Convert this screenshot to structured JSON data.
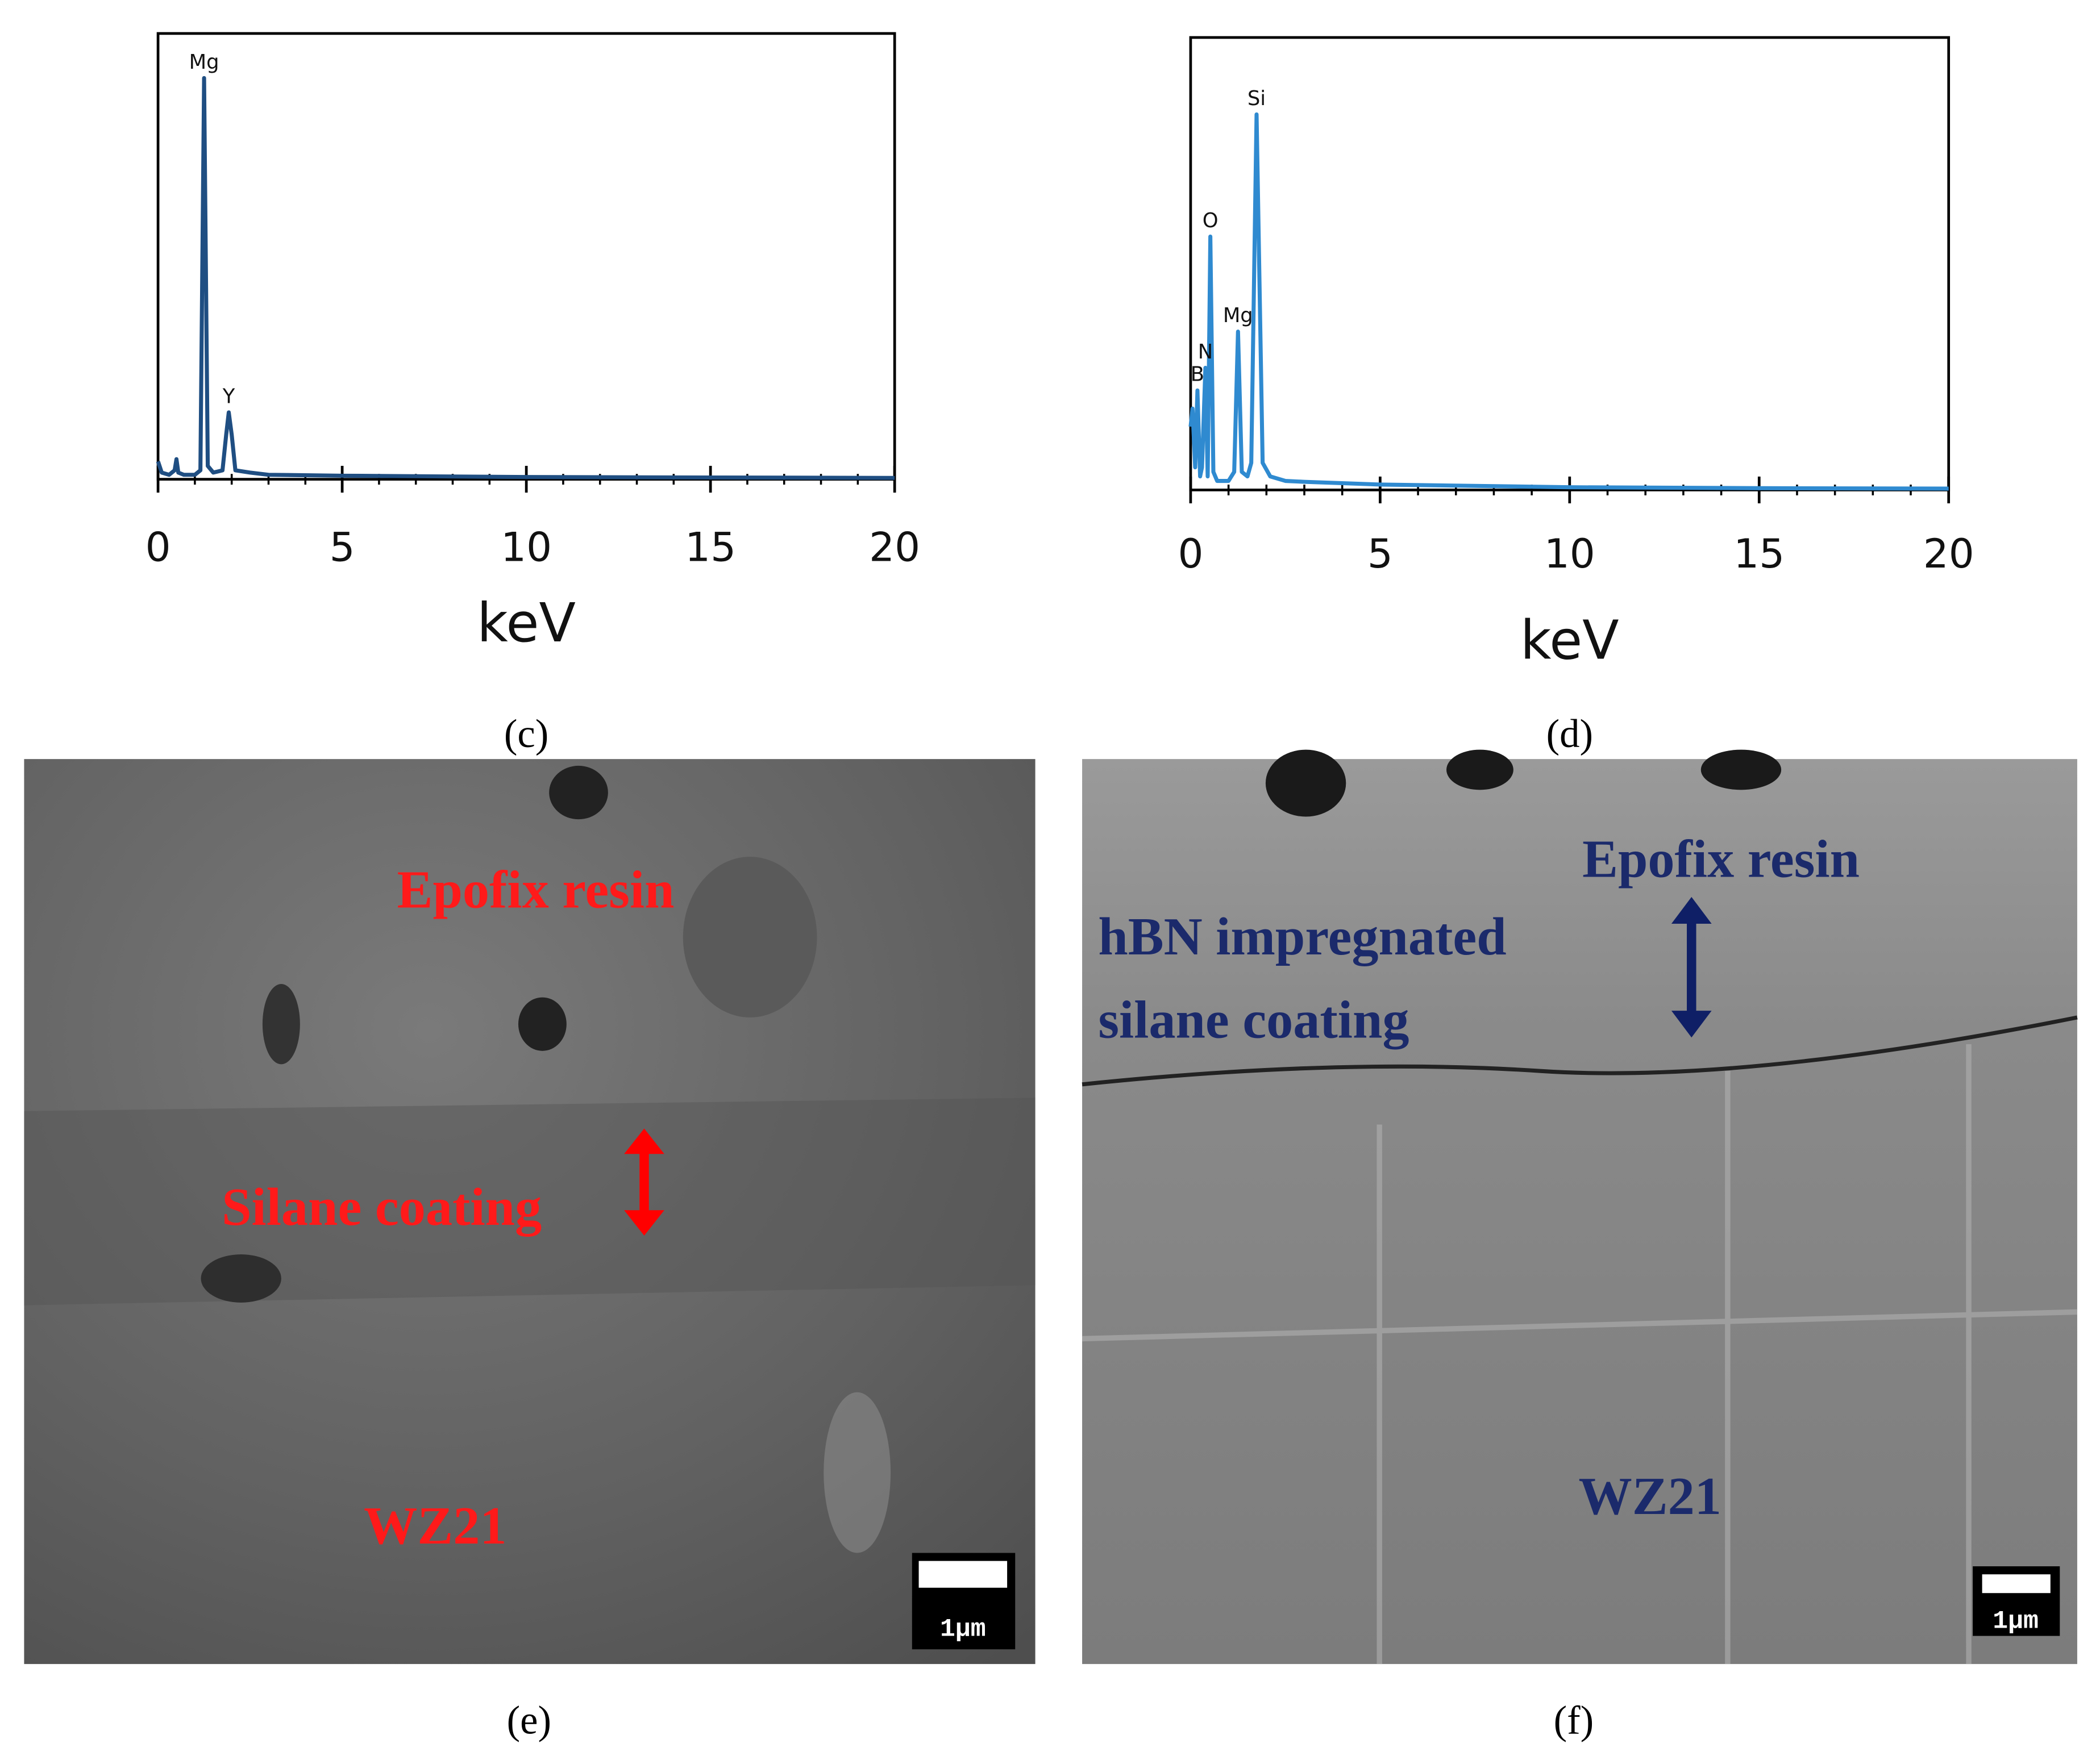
{
  "chart_data": [
    {
      "type": "line",
      "panel": "(c)",
      "x_label": "keV",
      "color": "#1f4e82",
      "x": [
        0,
        0.1,
        0.3,
        0.45,
        0.5,
        0.55,
        0.7,
        1.0,
        1.15,
        1.25,
        1.35,
        1.5,
        1.75,
        1.85,
        1.92,
        2.0,
        2.1,
        2.5,
        3,
        5,
        10,
        15,
        20
      ],
      "values": [
        4,
        1.5,
        1,
        2,
        4.5,
        1.5,
        1,
        1,
        2,
        90,
        3,
        1.5,
        2,
        10,
        15,
        10,
        2,
        1.5,
        1,
        0.8,
        0.5,
        0.4,
        0.3
      ],
      "xlim": [
        0,
        20
      ],
      "ylim": [
        0,
        100
      ],
      "xticks": [
        0,
        5,
        10,
        15,
        20
      ],
      "minor_tick_step": 1,
      "annotations": [
        {
          "text": "Mg",
          "x": 1.25,
          "y": 90
        },
        {
          "text": "Y",
          "x": 1.92,
          "y": 15
        }
      ]
    },
    {
      "type": "line",
      "panel": "(d)",
      "x_label": "keV",
      "color": "#2f8ad0",
      "x": [
        0,
        0.05,
        0.12,
        0.18,
        0.25,
        0.3,
        0.39,
        0.45,
        0.52,
        0.6,
        0.7,
        1.0,
        1.15,
        1.25,
        1.35,
        1.5,
        1.6,
        1.74,
        1.9,
        2.1,
        2.5,
        3,
        5,
        10,
        15,
        20
      ],
      "values": [
        14,
        18,
        5,
        22,
        3,
        5,
        27,
        3,
        56,
        4,
        2,
        2,
        4,
        35,
        4,
        3,
        6,
        83,
        6,
        3,
        2,
        1.8,
        1.2,
        0.6,
        0.4,
        0.3
      ],
      "xlim": [
        0,
        20
      ],
      "ylim": [
        0,
        100
      ],
      "xticks": [
        0,
        5,
        10,
        15,
        20
      ],
      "minor_tick_step": 1,
      "annotations": [
        {
          "text": "B",
          "x": 0.18,
          "y": 22
        },
        {
          "text": "N",
          "x": 0.39,
          "y": 27
        },
        {
          "text": "O",
          "x": 0.52,
          "y": 56
        },
        {
          "text": "Mg",
          "x": 1.25,
          "y": 35
        },
        {
          "text": "Si",
          "x": 1.74,
          "y": 83
        }
      ]
    }
  ],
  "images": [
    {
      "panel": "(e)",
      "labels": [
        "Epofix resin",
        "Silane coating",
        "WZ21"
      ],
      "scale_bar": "1μm"
    },
    {
      "panel": "(f)",
      "labels": [
        "Epofix resin",
        "hBN impregnated",
        "silane coating",
        "WZ21"
      ],
      "scale_bar": "1μm"
    }
  ]
}
